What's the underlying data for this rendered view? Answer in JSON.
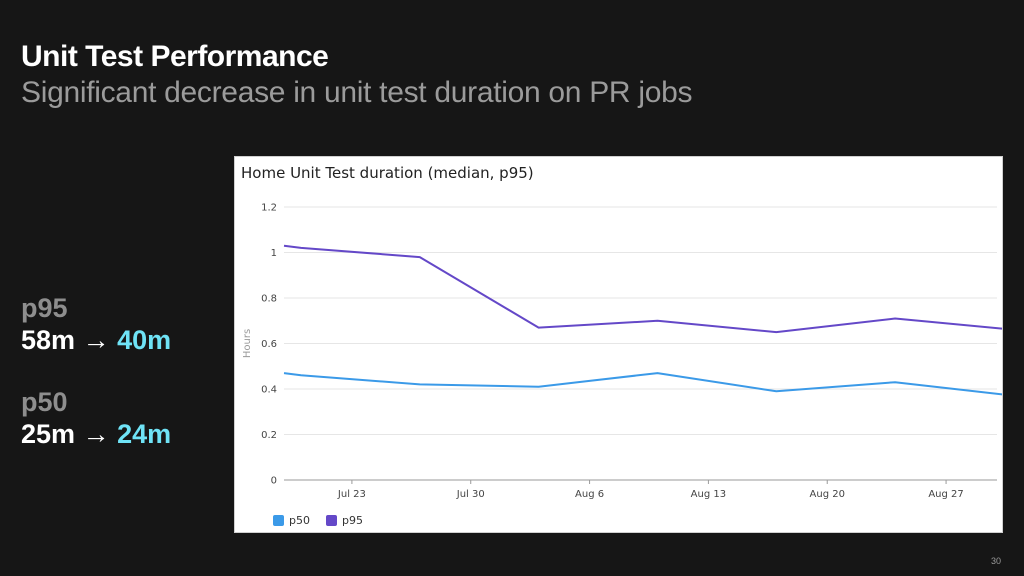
{
  "slide": {
    "title": "Unit Test Performance",
    "subtitle": "Significant decrease in unit test duration on PR jobs",
    "page_number": "30"
  },
  "metrics": [
    {
      "label": "p95",
      "old": "58m",
      "arrow": "→",
      "new": "40m"
    },
    {
      "label": "p50",
      "old": "25m",
      "arrow": "→",
      "new": "24m"
    }
  ],
  "colors": {
    "p50": "#3b9ae8",
    "p95": "#6448c8",
    "highlight": "#6fe3f6"
  },
  "chart_data": {
    "type": "line",
    "title": "Home Unit Test duration (median, p95)",
    "ylabel": "Hours",
    "xlabel": "",
    "ylim": [
      0,
      1.2
    ],
    "yticks": [
      "0",
      "0.2",
      "0.4",
      "0.6",
      "0.8",
      "1",
      "1.2"
    ],
    "xticks": [
      "Jul 23",
      "Jul 30",
      "Aug 6",
      "Aug 13",
      "Aug 20",
      "Aug 27"
    ],
    "xrange": [
      "2023-07-19",
      "2023-08-30"
    ],
    "grid": true,
    "legend": "bottom-left",
    "series": [
      {
        "name": "p50",
        "points": [
          [
            "2023-07-19",
            0.47
          ],
          [
            "2023-07-20",
            0.46
          ],
          [
            "2023-07-27",
            0.42
          ],
          [
            "2023-08-03",
            0.41
          ],
          [
            "2023-08-10",
            0.47
          ],
          [
            "2023-08-17",
            0.39
          ],
          [
            "2023-08-24",
            0.43
          ],
          [
            "2023-08-31",
            0.37
          ]
        ]
      },
      {
        "name": "p95",
        "points": [
          [
            "2023-07-19",
            1.03
          ],
          [
            "2023-07-20",
            1.02
          ],
          [
            "2023-07-27",
            0.98
          ],
          [
            "2023-08-03",
            0.67
          ],
          [
            "2023-08-10",
            0.7
          ],
          [
            "2023-08-17",
            0.65
          ],
          [
            "2023-08-24",
            0.71
          ],
          [
            "2023-08-31",
            0.66
          ]
        ]
      }
    ]
  }
}
